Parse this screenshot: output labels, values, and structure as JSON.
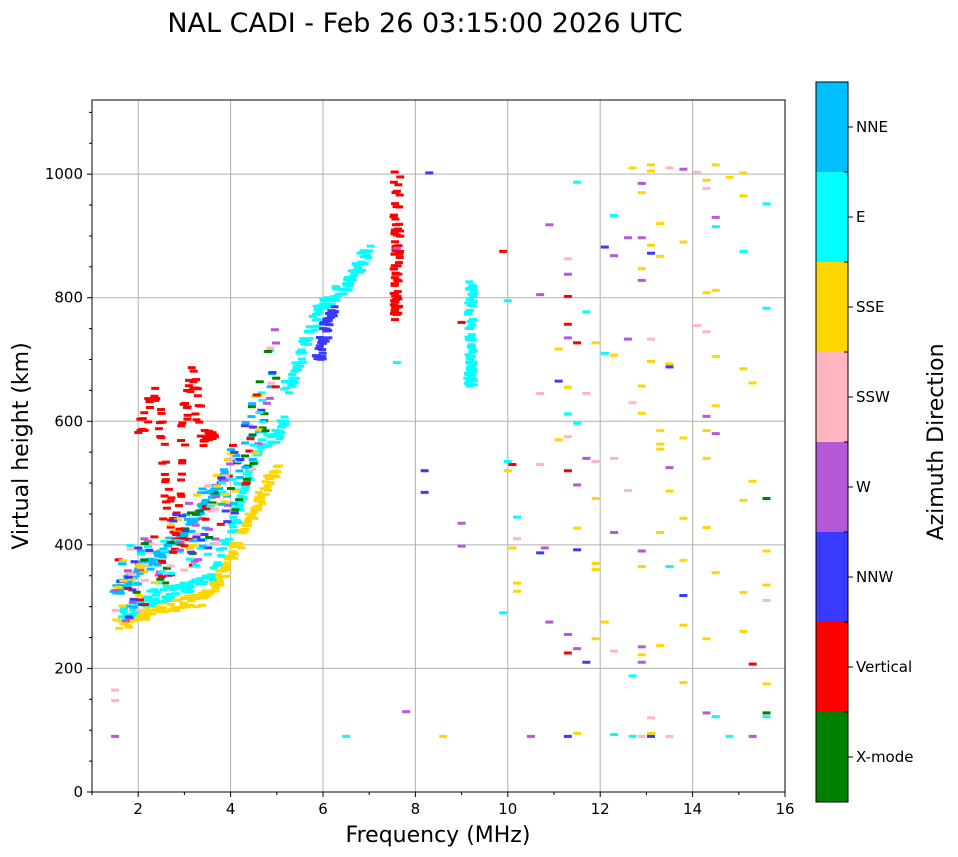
{
  "chart_data": {
    "type": "scatter",
    "title": "NAL CADI - Feb 26 03:15:00 2026 UTC",
    "xlabel": "Frequency (MHz)",
    "ylabel": "Virtual height (km)",
    "xlim": [
      1,
      16
    ],
    "ylim": [
      0,
      1120
    ],
    "x_ticks": [
      2,
      4,
      6,
      8,
      10,
      12,
      14,
      16
    ],
    "y_ticks": [
      0,
      200,
      400,
      600,
      800,
      1000
    ],
    "grid": true,
    "colorbar": {
      "title": "Azimuth Direction",
      "categories": [
        {
          "name": "X-mode",
          "color": "#008000"
        },
        {
          "name": "Vertical",
          "color": "#ff0000"
        },
        {
          "name": "NNW",
          "color": "#3a3aff"
        },
        {
          "name": "W",
          "color": "#b659d6"
        },
        {
          "name": "SSW",
          "color": "#ffb6c1"
        },
        {
          "name": "SSE",
          "color": "#ffd700"
        },
        {
          "name": "E",
          "color": "#00ffff"
        },
        {
          "name": "NNE",
          "color": "#00bfff"
        }
      ]
    },
    "traces": [
      {
        "name": "lower-trace-yellow",
        "category": "SSE",
        "points": [
          [
            1.6,
            270
          ],
          [
            1.9,
            280
          ],
          [
            2.2,
            292
          ],
          [
            2.6,
            300
          ],
          [
            3.0,
            305
          ],
          [
            3.3,
            310
          ],
          [
            3.6,
            330
          ],
          [
            3.8,
            350
          ],
          [
            4.0,
            380
          ],
          [
            4.2,
            410
          ],
          [
            4.4,
            440
          ],
          [
            4.6,
            470
          ],
          [
            4.8,
            500
          ],
          [
            5.0,
            530
          ]
        ]
      },
      {
        "name": "lower-trace-cyan",
        "category": "E",
        "points": [
          [
            1.6,
            285
          ],
          [
            2.0,
            300
          ],
          [
            2.4,
            315
          ],
          [
            2.8,
            325
          ],
          [
            3.2,
            335
          ],
          [
            3.6,
            350
          ],
          [
            4.0,
            420
          ],
          [
            4.2,
            470
          ],
          [
            4.4,
            520
          ],
          [
            4.7,
            560
          ],
          [
            5.0,
            580
          ],
          [
            5.2,
            600
          ]
        ]
      },
      {
        "name": "upper-trace-blue",
        "category": "NNE",
        "points": [
          [
            1.5,
            330
          ],
          [
            1.8,
            345
          ],
          [
            2.1,
            360
          ],
          [
            2.4,
            380
          ],
          [
            2.7,
            400
          ],
          [
            3.0,
            420
          ],
          [
            3.3,
            450
          ],
          [
            3.6,
            480
          ],
          [
            3.9,
            520
          ]
        ]
      },
      {
        "name": "upper-trace-red",
        "category": "Vertical",
        "points": [
          [
            2.0,
            580
          ],
          [
            2.4,
            650
          ],
          [
            2.6,
            500
          ],
          [
            2.8,
            400
          ],
          [
            3.0,
            600
          ],
          [
            3.2,
            680
          ],
          [
            3.4,
            560
          ],
          [
            3.7,
            590
          ]
        ]
      },
      {
        "name": "f2-trace-cyan",
        "category": "E",
        "points": [
          [
            5.2,
            650
          ],
          [
            5.4,
            680
          ],
          [
            5.6,
            720
          ],
          [
            5.8,
            760
          ],
          [
            6.0,
            790
          ],
          [
            6.2,
            800
          ],
          [
            6.5,
            820
          ],
          [
            6.8,
            850
          ],
          [
            7.0,
            880
          ]
        ]
      },
      {
        "name": "f2-trace-nnw",
        "category": "NNW",
        "points": [
          [
            5.9,
            700
          ],
          [
            6.0,
            730
          ],
          [
            6.1,
            760
          ],
          [
            6.2,
            780
          ]
        ]
      },
      {
        "name": "spread-column-7.6",
        "category": "Vertical",
        "points": [
          [
            7.6,
            770
          ],
          [
            7.6,
            800
          ],
          [
            7.6,
            840
          ],
          [
            7.6,
            880
          ],
          [
            7.6,
            920
          ],
          [
            7.6,
            1000
          ]
        ]
      },
      {
        "name": "column-9.2",
        "category": "E",
        "points": [
          [
            9.2,
            660
          ],
          [
            9.2,
            680
          ],
          [
            9.2,
            700
          ],
          [
            9.2,
            740
          ],
          [
            9.2,
            790
          ],
          [
            9.2,
            825
          ]
        ]
      }
    ],
    "scattered_points": [
      {
        "x": 7.6,
        "y": 695,
        "category": "E"
      },
      {
        "x": 7.6,
        "y": 880,
        "category": "W"
      },
      {
        "x": 8.3,
        "y": 1002,
        "category": "NNW"
      },
      {
        "x": 8.2,
        "y": 520,
        "category": "NNW"
      },
      {
        "x": 8.2,
        "y": 485,
        "category": "NNW"
      },
      {
        "x": 8.6,
        "y": 90,
        "category": "SSE"
      },
      {
        "x": 6.5,
        "y": 90,
        "category": "E"
      },
      {
        "x": 7.8,
        "y": 130,
        "category": "W"
      },
      {
        "x": 9.0,
        "y": 760,
        "category": "Vertical"
      },
      {
        "x": 9.0,
        "y": 435,
        "category": "W"
      },
      {
        "x": 9.0,
        "y": 398,
        "category": "W"
      },
      {
        "x": 9.9,
        "y": 875,
        "category": "Vertical"
      },
      {
        "x": 9.9,
        "y": 290,
        "category": "E"
      },
      {
        "x": 10.0,
        "y": 795,
        "category": "E"
      },
      {
        "x": 10.0,
        "y": 535,
        "category": "E"
      },
      {
        "x": 10.1,
        "y": 530,
        "category": "Vertical"
      },
      {
        "x": 10.0,
        "y": 520,
        "category": "SSE"
      },
      {
        "x": 10.2,
        "y": 445,
        "category": "E"
      },
      {
        "x": 10.2,
        "y": 410,
        "category": "SSW"
      },
      {
        "x": 10.1,
        "y": 395,
        "category": "SSE"
      },
      {
        "x": 10.2,
        "y": 338,
        "category": "SSE"
      },
      {
        "x": 10.2,
        "y": 325,
        "category": "SSE"
      },
      {
        "x": 10.5,
        "y": 90,
        "category": "W"
      },
      {
        "x": 10.7,
        "y": 805,
        "category": "W"
      },
      {
        "x": 10.7,
        "y": 645,
        "category": "SSW"
      },
      {
        "x": 10.7,
        "y": 530,
        "category": "SSW"
      },
      {
        "x": 10.7,
        "y": 387,
        "category": "NNW"
      },
      {
        "x": 10.8,
        "y": 395,
        "category": "W"
      },
      {
        "x": 10.9,
        "y": 918,
        "category": "W"
      },
      {
        "x": 10.9,
        "y": 275,
        "category": "W"
      },
      {
        "x": 11.1,
        "y": 717,
        "category": "SSE"
      },
      {
        "x": 11.1,
        "y": 665,
        "category": "NNW"
      },
      {
        "x": 11.1,
        "y": 570,
        "category": "SSE"
      },
      {
        "x": 11.3,
        "y": 863,
        "category": "SSW"
      },
      {
        "x": 11.3,
        "y": 838,
        "category": "W"
      },
      {
        "x": 11.3,
        "y": 802,
        "category": "Vertical"
      },
      {
        "x": 11.3,
        "y": 757,
        "category": "Vertical"
      },
      {
        "x": 11.3,
        "y": 735,
        "category": "W"
      },
      {
        "x": 11.3,
        "y": 655,
        "category": "SSE"
      },
      {
        "x": 11.3,
        "y": 612,
        "category": "E"
      },
      {
        "x": 11.3,
        "y": 575,
        "category": "SSW"
      },
      {
        "x": 11.3,
        "y": 520,
        "category": "Vertical"
      },
      {
        "x": 11.3,
        "y": 255,
        "category": "W"
      },
      {
        "x": 11.3,
        "y": 225,
        "category": "Vertical"
      },
      {
        "x": 11.3,
        "y": 90,
        "category": "NNW"
      },
      {
        "x": 11.5,
        "y": 987,
        "category": "E"
      },
      {
        "x": 11.5,
        "y": 727,
        "category": "Vertical"
      },
      {
        "x": 11.5,
        "y": 597,
        "category": "E"
      },
      {
        "x": 11.5,
        "y": 497,
        "category": "W"
      },
      {
        "x": 11.5,
        "y": 427,
        "category": "SSE"
      },
      {
        "x": 11.5,
        "y": 392,
        "category": "NNW"
      },
      {
        "x": 11.5,
        "y": 232,
        "category": "W"
      },
      {
        "x": 11.5,
        "y": 95,
        "category": "SSE"
      },
      {
        "x": 11.7,
        "y": 777,
        "category": "E"
      },
      {
        "x": 11.7,
        "y": 645,
        "category": "SSW"
      },
      {
        "x": 11.7,
        "y": 540,
        "category": "W"
      },
      {
        "x": 11.7,
        "y": 210,
        "category": "NNW"
      },
      {
        "x": 11.9,
        "y": 727,
        "category": "SSE"
      },
      {
        "x": 11.9,
        "y": 535,
        "category": "SSW"
      },
      {
        "x": 11.9,
        "y": 475,
        "category": "SSE"
      },
      {
        "x": 11.9,
        "y": 370,
        "category": "SSE"
      },
      {
        "x": 11.9,
        "y": 360,
        "category": "SSE"
      },
      {
        "x": 11.9,
        "y": 248,
        "category": "SSE"
      },
      {
        "x": 12.1,
        "y": 882,
        "category": "NNW"
      },
      {
        "x": 12.1,
        "y": 710,
        "category": "E"
      },
      {
        "x": 12.1,
        "y": 275,
        "category": "SSE"
      },
      {
        "x": 12.3,
        "y": 933,
        "category": "E"
      },
      {
        "x": 12.3,
        "y": 868,
        "category": "W"
      },
      {
        "x": 12.3,
        "y": 707,
        "category": "SSE"
      },
      {
        "x": 12.3,
        "y": 540,
        "category": "SSW"
      },
      {
        "x": 12.3,
        "y": 420,
        "category": "W"
      },
      {
        "x": 12.3,
        "y": 228,
        "category": "SSW"
      },
      {
        "x": 12.3,
        "y": 93,
        "category": "E"
      },
      {
        "x": 12.6,
        "y": 897,
        "category": "W"
      },
      {
        "x": 12.6,
        "y": 733,
        "category": "W"
      },
      {
        "x": 12.6,
        "y": 488,
        "category": "SSW"
      },
      {
        "x": 12.7,
        "y": 1010,
        "category": "SSE"
      },
      {
        "x": 12.7,
        "y": 630,
        "category": "SSW"
      },
      {
        "x": 12.7,
        "y": 188,
        "category": "E"
      },
      {
        "x": 12.7,
        "y": 90,
        "category": "E"
      },
      {
        "x": 12.9,
        "y": 985,
        "category": "W"
      },
      {
        "x": 12.9,
        "y": 970,
        "category": "SSE"
      },
      {
        "x": 12.9,
        "y": 897,
        "category": "W"
      },
      {
        "x": 12.9,
        "y": 847,
        "category": "SSE"
      },
      {
        "x": 12.9,
        "y": 828,
        "category": "W"
      },
      {
        "x": 12.9,
        "y": 657,
        "category": "SSE"
      },
      {
        "x": 12.9,
        "y": 613,
        "category": "SSE"
      },
      {
        "x": 12.9,
        "y": 390,
        "category": "W"
      },
      {
        "x": 12.9,
        "y": 365,
        "category": "SSE"
      },
      {
        "x": 12.9,
        "y": 235,
        "category": "W"
      },
      {
        "x": 12.9,
        "y": 222,
        "category": "SSE"
      },
      {
        "x": 12.9,
        "y": 210,
        "category": "W"
      },
      {
        "x": 12.9,
        "y": 90,
        "category": "SSW"
      },
      {
        "x": 13.1,
        "y": 1015,
        "category": "SSE"
      },
      {
        "x": 13.1,
        "y": 1005,
        "category": "SSE"
      },
      {
        "x": 13.1,
        "y": 885,
        "category": "SSE"
      },
      {
        "x": 13.1,
        "y": 872,
        "category": "NNW"
      },
      {
        "x": 13.1,
        "y": 733,
        "category": "SSW"
      },
      {
        "x": 13.1,
        "y": 697,
        "category": "SSE"
      },
      {
        "x": 13.1,
        "y": 120,
        "category": "SSW"
      },
      {
        "x": 13.1,
        "y": 95,
        "category": "SSE"
      },
      {
        "x": 13.1,
        "y": 90,
        "category": "NNW"
      },
      {
        "x": 13.3,
        "y": 920,
        "category": "SSE"
      },
      {
        "x": 13.3,
        "y": 867,
        "category": "SSE"
      },
      {
        "x": 13.3,
        "y": 585,
        "category": "SSE"
      },
      {
        "x": 13.3,
        "y": 563,
        "category": "SSE"
      },
      {
        "x": 13.3,
        "y": 555,
        "category": "SSE"
      },
      {
        "x": 13.3,
        "y": 420,
        "category": "SSE"
      },
      {
        "x": 13.3,
        "y": 237,
        "category": "SSE"
      },
      {
        "x": 13.5,
        "y": 1010,
        "category": "SSW"
      },
      {
        "x": 13.5,
        "y": 693,
        "category": "SSE"
      },
      {
        "x": 13.5,
        "y": 688,
        "category": "NNW"
      },
      {
        "x": 13.5,
        "y": 525,
        "category": "W"
      },
      {
        "x": 13.5,
        "y": 487,
        "category": "SSE"
      },
      {
        "x": 13.5,
        "y": 365,
        "category": "E"
      },
      {
        "x": 13.5,
        "y": 90,
        "category": "SSW"
      },
      {
        "x": 13.8,
        "y": 1008,
        "category": "W"
      },
      {
        "x": 13.8,
        "y": 890,
        "category": "SSE"
      },
      {
        "x": 13.8,
        "y": 573,
        "category": "SSE"
      },
      {
        "x": 13.8,
        "y": 443,
        "category": "SSE"
      },
      {
        "x": 13.8,
        "y": 375,
        "category": "SSE"
      },
      {
        "x": 13.8,
        "y": 318,
        "category": "NNW"
      },
      {
        "x": 13.8,
        "y": 270,
        "category": "SSE"
      },
      {
        "x": 13.8,
        "y": 177,
        "category": "SSE"
      },
      {
        "x": 14.1,
        "y": 1003,
        "category": "SSW"
      },
      {
        "x": 14.1,
        "y": 755,
        "category": "SSW"
      },
      {
        "x": 14.3,
        "y": 990,
        "category": "SSE"
      },
      {
        "x": 14.3,
        "y": 977,
        "category": "SSW"
      },
      {
        "x": 14.3,
        "y": 808,
        "category": "SSE"
      },
      {
        "x": 14.3,
        "y": 745,
        "category": "SSW"
      },
      {
        "x": 14.3,
        "y": 608,
        "category": "W"
      },
      {
        "x": 14.3,
        "y": 585,
        "category": "SSE"
      },
      {
        "x": 14.3,
        "y": 540,
        "category": "SSE"
      },
      {
        "x": 14.3,
        "y": 428,
        "category": "SSE"
      },
      {
        "x": 14.3,
        "y": 248,
        "category": "SSE"
      },
      {
        "x": 14.3,
        "y": 128,
        "category": "W"
      },
      {
        "x": 14.5,
        "y": 1015,
        "category": "SSE"
      },
      {
        "x": 14.5,
        "y": 930,
        "category": "W"
      },
      {
        "x": 14.5,
        "y": 915,
        "category": "E"
      },
      {
        "x": 14.5,
        "y": 812,
        "category": "SSE"
      },
      {
        "x": 14.5,
        "y": 705,
        "category": "SSE"
      },
      {
        "x": 14.5,
        "y": 625,
        "category": "SSE"
      },
      {
        "x": 14.5,
        "y": 580,
        "category": "W"
      },
      {
        "x": 14.5,
        "y": 355,
        "category": "SSE"
      },
      {
        "x": 14.5,
        "y": 122,
        "category": "E"
      },
      {
        "x": 14.8,
        "y": 995,
        "category": "SSE"
      },
      {
        "x": 14.8,
        "y": 90,
        "category": "E"
      },
      {
        "x": 15.1,
        "y": 1002,
        "category": "SSE"
      },
      {
        "x": 15.1,
        "y": 965,
        "category": "SSE"
      },
      {
        "x": 15.1,
        "y": 875,
        "category": "E"
      },
      {
        "x": 15.1,
        "y": 685,
        "category": "SSE"
      },
      {
        "x": 15.1,
        "y": 472,
        "category": "SSE"
      },
      {
        "x": 15.1,
        "y": 323,
        "category": "SSE"
      },
      {
        "x": 15.1,
        "y": 260,
        "category": "SSE"
      },
      {
        "x": 15.3,
        "y": 662,
        "category": "SSE"
      },
      {
        "x": 15.3,
        "y": 503,
        "category": "SSE"
      },
      {
        "x": 15.3,
        "y": 207,
        "category": "Vertical"
      },
      {
        "x": 15.3,
        "y": 90,
        "category": "W"
      },
      {
        "x": 15.6,
        "y": 952,
        "category": "E"
      },
      {
        "x": 15.6,
        "y": 783,
        "category": "E"
      },
      {
        "x": 15.6,
        "y": 475,
        "category": "X-mode"
      },
      {
        "x": 15.6,
        "y": 390,
        "category": "SSE"
      },
      {
        "x": 15.6,
        "y": 335,
        "category": "SSE"
      },
      {
        "x": 15.6,
        "y": 310,
        "category": "SSW"
      },
      {
        "x": 15.6,
        "y": 175,
        "category": "SSE"
      },
      {
        "x": 15.6,
        "y": 128,
        "category": "X-mode"
      },
      {
        "x": 15.6,
        "y": 122,
        "category": "E"
      },
      {
        "x": 1.5,
        "y": 90,
        "category": "W"
      },
      {
        "x": 1.5,
        "y": 165,
        "category": "SSW"
      },
      {
        "x": 1.5,
        "y": 148,
        "category": "SSW"
      }
    ]
  }
}
